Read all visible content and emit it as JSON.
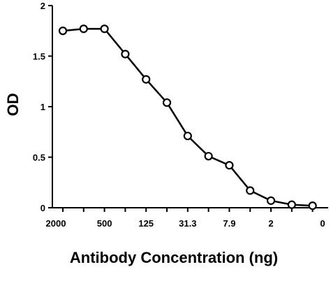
{
  "chart_data": {
    "type": "line",
    "title": "",
    "xlabel": "Antibody Concentration (ng)",
    "ylabel": "OD",
    "x_tick_labels": [
      "2000",
      "500",
      "125",
      "31.3",
      "7.9",
      "2",
      "0"
    ],
    "y_tick_labels": [
      "0",
      "0.5",
      "1",
      "1.5",
      "2"
    ],
    "ylim": [
      0,
      2
    ],
    "series": [
      {
        "x": [
          2000,
          1000,
          500,
          250,
          125,
          62.5,
          31.3,
          15.6,
          7.9,
          3.9,
          2,
          1,
          0
        ],
        "y": [
          1.75,
          1.77,
          1.77,
          1.52,
          1.27,
          1.04,
          0.71,
          0.51,
          0.42,
          0.17,
          0.07,
          0.03,
          0.02
        ]
      }
    ],
    "grid": false,
    "legend": "none"
  }
}
